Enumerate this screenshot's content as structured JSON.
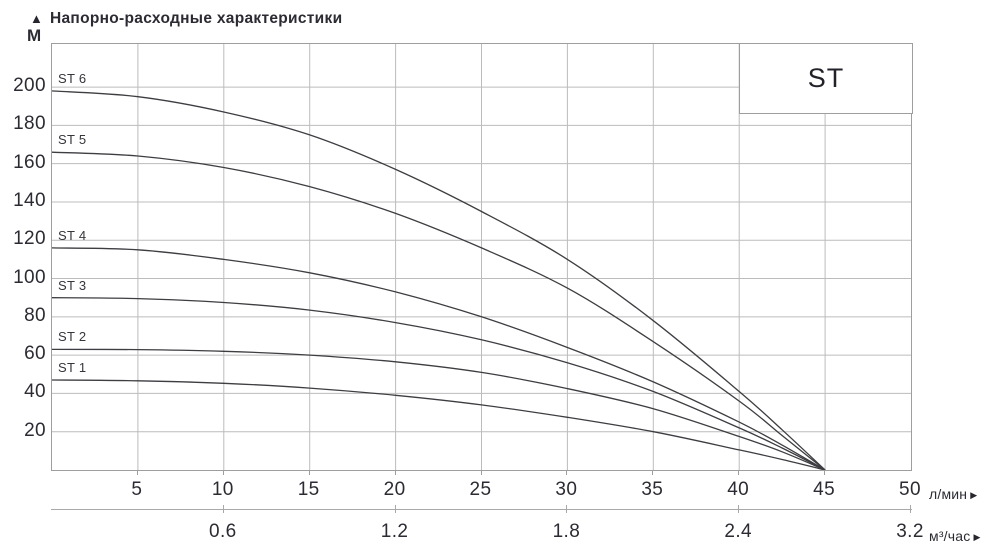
{
  "title": "Напорно-расходные характеристики",
  "family_label": "ST",
  "icons": {
    "up_arrow": "▲",
    "right_arrow": "▶"
  },
  "y_axis": {
    "unit": "М",
    "ticks": [
      20,
      40,
      60,
      80,
      100,
      120,
      140,
      160,
      180,
      200
    ]
  },
  "x_axis": {
    "unit": "л/мин",
    "ticks": [
      5,
      10,
      15,
      20,
      25,
      30,
      35,
      40,
      45,
      50
    ]
  },
  "x_axis2": {
    "unit": "м³/час",
    "ticks": [
      {
        "label": "0.6",
        "x": 10
      },
      {
        "label": "1.2",
        "x": 20
      },
      {
        "label": "1.8",
        "x": 30
      },
      {
        "label": "2.4",
        "x": 40
      },
      {
        "label": "3.2",
        "x": 50
      }
    ]
  },
  "chart_data": {
    "type": "line",
    "title": "Напорно-расходные характеристики",
    "xlabel": "л/мин",
    "x2label": "м³/час",
    "ylabel": "М",
    "xlim": [
      0,
      50
    ],
    "ylim": [
      0,
      222.5
    ],
    "grid": true,
    "legend_position": "inline-left",
    "converge_point": {
      "x": 45,
      "y": 0
    },
    "series": [
      {
        "name": "ST 6",
        "shutoff_head_m": 198,
        "points": [
          [
            0,
            198
          ],
          [
            5,
            195
          ],
          [
            10,
            187
          ],
          [
            15,
            175
          ],
          [
            20,
            157
          ],
          [
            25,
            135
          ],
          [
            30,
            110
          ],
          [
            35,
            78
          ],
          [
            40,
            41
          ],
          [
            42.5,
            21
          ],
          [
            45,
            0
          ]
        ]
      },
      {
        "name": "ST 5",
        "shutoff_head_m": 166,
        "points": [
          [
            0,
            166
          ],
          [
            5,
            164
          ],
          [
            10,
            158
          ],
          [
            15,
            148
          ],
          [
            20,
            134
          ],
          [
            25,
            116
          ],
          [
            30,
            95
          ],
          [
            35,
            67
          ],
          [
            40,
            36
          ],
          [
            42.5,
            18
          ],
          [
            45,
            0
          ]
        ]
      },
      {
        "name": "ST 4",
        "shutoff_head_m": 116,
        "points": [
          [
            0,
            116
          ],
          [
            5,
            115
          ],
          [
            10,
            110
          ],
          [
            15,
            103
          ],
          [
            20,
            93
          ],
          [
            25,
            80
          ],
          [
            30,
            64
          ],
          [
            35,
            46
          ],
          [
            40,
            25
          ],
          [
            42.5,
            13
          ],
          [
            45,
            0
          ]
        ]
      },
      {
        "name": "ST 3",
        "shutoff_head_m": 90,
        "points": [
          [
            0,
            90
          ],
          [
            5,
            89.5
          ],
          [
            10,
            87.5
          ],
          [
            15,
            83.5
          ],
          [
            20,
            77
          ],
          [
            25,
            68
          ],
          [
            30,
            56
          ],
          [
            35,
            41
          ],
          [
            40,
            22
          ],
          [
            42.5,
            11.5
          ],
          [
            45,
            0
          ]
        ]
      },
      {
        "name": "ST 2",
        "shutoff_head_m": 63,
        "points": [
          [
            0,
            63
          ],
          [
            5,
            62.9
          ],
          [
            10,
            62
          ],
          [
            15,
            60
          ],
          [
            20,
            56.5
          ],
          [
            25,
            51
          ],
          [
            30,
            42.5
          ],
          [
            35,
            32
          ],
          [
            40,
            17.5
          ],
          [
            42.5,
            9.5
          ],
          [
            45,
            0
          ]
        ]
      },
      {
        "name": "ST 1",
        "shutoff_head_m": 47,
        "points": [
          [
            0,
            47
          ],
          [
            5,
            46.6
          ],
          [
            10,
            45.3
          ],
          [
            15,
            42.8
          ],
          [
            20,
            39
          ],
          [
            25,
            34
          ],
          [
            30,
            27.5
          ],
          [
            35,
            20
          ],
          [
            40,
            10.5
          ],
          [
            42.5,
            5.5
          ],
          [
            45,
            0
          ]
        ]
      }
    ]
  }
}
